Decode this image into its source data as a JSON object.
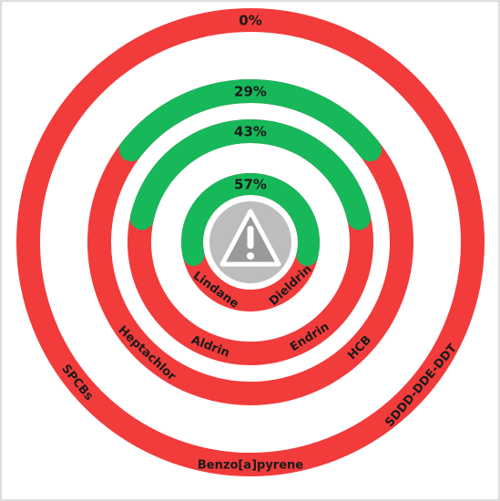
{
  "chart_data": {
    "type": "radial",
    "values": [
      0,
      29,
      43,
      57
    ],
    "value_labels": [
      "0%",
      "29%",
      "43%",
      "57%"
    ],
    "ring_labels": [
      [
        "SPCBs",
        "Benzo[a]pyrene",
        "SDDD-DDE-DDT"
      ],
      [
        "Heptachlor",
        "HCB"
      ],
      [
        "Aldrin",
        "Endrin"
      ],
      [
        "Lindane",
        "Dieldrin"
      ]
    ],
    "colors": {
      "remaining": "#f23b3b",
      "progress": "#16b85a"
    }
  }
}
